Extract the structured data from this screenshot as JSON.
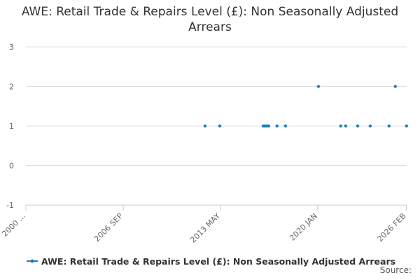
{
  "chart_data": {
    "type": "scatter",
    "title": "AWE: Retail Trade & Repairs Level (£): Non Seasonally Adjusted Arrears",
    "source": "Source:",
    "legend": "bottom",
    "grid": true,
    "xlim": [
      2000,
      2026.1
    ],
    "xticks": [
      {
        "value": 2000,
        "label": "2000 ..."
      },
      {
        "value": 2006.67,
        "label": "2006 SEP"
      },
      {
        "value": 2013.33,
        "label": "2013 MAY"
      },
      {
        "value": 2020,
        "label": "2020 JAN"
      },
      {
        "value": 2026.08,
        "label": "2026 FEB"
      }
    ],
    "ylim": [
      -1,
      3
    ],
    "yticks": [
      -1,
      0,
      1,
      2,
      3
    ],
    "series": [
      {
        "name": "AWE: Retail Trade & Repairs Level (£): Non Seasonally Adjusted Arrears",
        "color": "#1a7fb5",
        "x": [
          2012.28,
          2013.29,
          2016.26,
          2016.36,
          2016.45,
          2016.55,
          2016.64,
          2017.21,
          2017.79,
          2020.05,
          2021.58,
          2021.92,
          2022.74,
          2023.6,
          2024.89,
          2025.32,
          2026.09
        ],
        "values": [
          1,
          1,
          1,
          1,
          1,
          1,
          1,
          1,
          1,
          2,
          1,
          1,
          1,
          1,
          1,
          2,
          1
        ]
      }
    ]
  }
}
